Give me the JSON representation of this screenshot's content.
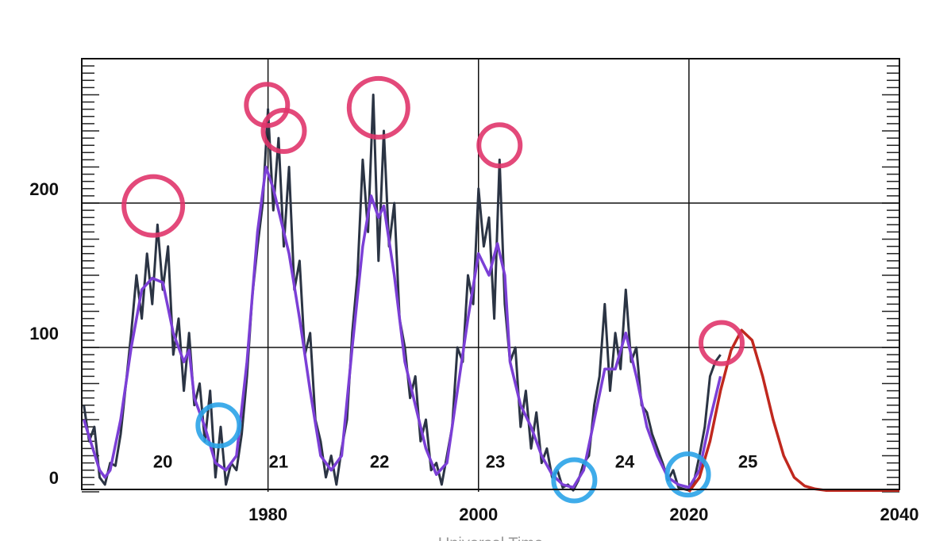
{
  "chart_data": {
    "type": "line",
    "xlabel": "Universal Time",
    "xlim": [
      1962.3,
      2040
    ],
    "ylim": [
      0,
      300
    ],
    "xticks": [
      1980,
      2000,
      2020,
      2040
    ],
    "yticks": [
      0,
      100,
      200
    ],
    "grid": true,
    "minor_ytick_step": 5,
    "series": [
      {
        "color": "#2b3444",
        "x": [
          1962.5,
          1963,
          1963.5,
          1964,
          1964.5,
          1965,
          1965.5,
          1966,
          1966.5,
          1967,
          1967.5,
          1968,
          1968.5,
          1969,
          1969.5,
          1970,
          1970.5,
          1971,
          1971.5,
          1972,
          1972.5,
          1973,
          1973.5,
          1974,
          1974.5,
          1975,
          1975.5,
          1976,
          1976.5,
          1977,
          1977.5,
          1978,
          1978.5,
          1979,
          1979.5,
          1980,
          1980.5,
          1981,
          1981.5,
          1982,
          1982.5,
          1983,
          1983.5,
          1984,
          1984.5,
          1985,
          1985.5,
          1986,
          1986.5,
          1987,
          1987.5,
          1988,
          1988.5,
          1989,
          1989.5,
          1990,
          1990.5,
          1991,
          1991.5,
          1992,
          1992.5,
          1993,
          1993.5,
          1994,
          1994.5,
          1995,
          1995.5,
          1996,
          1996.5,
          1997,
          1997.5,
          1998,
          1998.5,
          1999,
          1999.5,
          2000,
          2000.5,
          2001,
          2001.5,
          2002,
          2002.5,
          2003,
          2003.5,
          2004,
          2004.5,
          2005,
          2005.5,
          2006,
          2006.5,
          2007,
          2007.5,
          2008,
          2008.5,
          2009,
          2009.5,
          2010,
          2010.5,
          2011,
          2011.5,
          2012,
          2012.5,
          2013,
          2013.5,
          2014,
          2014.5,
          2015,
          2015.5,
          2016,
          2016.5,
          2017,
          2017.5,
          2018,
          2018.5,
          2019,
          2019.5,
          2020,
          2020.5,
          2021,
          2021.5,
          2022,
          2022.5,
          2023
        ],
        "values": [
          60,
          35,
          45,
          10,
          5,
          20,
          18,
          40,
          75,
          110,
          150,
          120,
          165,
          130,
          185,
          140,
          170,
          95,
          120,
          70,
          110,
          60,
          75,
          35,
          70,
          10,
          45,
          5,
          20,
          15,
          40,
          80,
          135,
          170,
          200,
          265,
          195,
          245,
          170,
          225,
          140,
          160,
          95,
          110,
          50,
          35,
          10,
          25,
          5,
          30,
          50,
          110,
          150,
          230,
          180,
          275,
          160,
          250,
          170,
          200,
          120,
          100,
          65,
          80,
          35,
          50,
          15,
          20,
          5,
          25,
          45,
          100,
          90,
          150,
          130,
          210,
          170,
          190,
          120,
          230,
          130,
          90,
          100,
          45,
          70,
          30,
          55,
          20,
          30,
          10,
          15,
          3,
          5,
          1,
          8,
          20,
          25,
          60,
          80,
          130,
          70,
          110,
          85,
          140,
          90,
          100,
          60,
          55,
          40,
          30,
          20,
          8,
          15,
          3,
          2,
          1,
          8,
          25,
          45,
          80,
          90,
          95
        ]
      },
      {
        "color": "#7b3fd6",
        "x": [
          1962.5,
          1963,
          1964,
          1964.5,
          1965,
          1966,
          1967,
          1968,
          1969,
          1970,
          1971,
          1972,
          1972.5,
          1973,
          1974,
          1975,
          1976,
          1977,
          1978,
          1979,
          1979.8,
          1980.5,
          1981,
          1982,
          1983,
          1984,
          1985,
          1986,
          1987,
          1988,
          1989,
          1989.8,
          1990.5,
          1991,
          1992,
          1993,
          1994,
          1995,
          1996,
          1997,
          1998,
          1999,
          2000,
          2001,
          2001.8,
          2002.5,
          2003,
          2004,
          2005,
          2006,
          2007,
          2008,
          2009,
          2010,
          2011,
          2012,
          2013,
          2014,
          2015,
          2016,
          2017,
          2018,
          2019,
          2020,
          2021,
          2022,
          2023
        ],
        "values": [
          50,
          38,
          15,
          10,
          15,
          50,
          100,
          140,
          148,
          145,
          110,
          90,
          98,
          65,
          45,
          20,
          15,
          25,
          90,
          180,
          225,
          210,
          195,
          165,
          120,
          70,
          25,
          15,
          25,
          100,
          170,
          205,
          190,
          198,
          150,
          90,
          60,
          30,
          12,
          20,
          70,
          120,
          165,
          150,
          172,
          150,
          90,
          60,
          45,
          25,
          12,
          5,
          3,
          15,
          50,
          85,
          85,
          110,
          80,
          45,
          25,
          10,
          5,
          3,
          15,
          50,
          80
        ]
      },
      {
        "color": "#c0281e",
        "x": [
          2020,
          2021,
          2022,
          2023,
          2024,
          2025,
          2026,
          2027,
          2028,
          2029,
          2030,
          2031,
          2032,
          2033,
          2034,
          2036,
          2038,
          2040
        ],
        "values": [
          0,
          10,
          35,
          70,
          98,
          112,
          105,
          80,
          50,
          25,
          10,
          4,
          2,
          1,
          1,
          1,
          1,
          1
        ]
      }
    ],
    "highlights": [
      {
        "x": 1969.1,
        "y": 198,
        "color": "#e0356c"
      },
      {
        "x": 1979.9,
        "y": 268,
        "color": "#e0356c"
      },
      {
        "x": 1981.5,
        "y": 250,
        "color": "#e0356c"
      },
      {
        "x": 1990.5,
        "y": 266,
        "color": "#e0356c"
      },
      {
        "x": 2002,
        "y": 240,
        "color": "#e0356c"
      },
      {
        "x": 2023.1,
        "y": 103,
        "color": "#e0356c"
      },
      {
        "x": 1975.3,
        "y": 46,
        "color": "#2aa3e8"
      },
      {
        "x": 2009.1,
        "y": 8,
        "color": "#2aa3e8"
      },
      {
        "x": 2019.9,
        "y": 12,
        "color": "#2aa3e8"
      }
    ],
    "cycle_labels": [
      {
        "label": "20",
        "x": 1970.0,
        "y": 20
      },
      {
        "label": "21",
        "x": 1981.0,
        "y": 20
      },
      {
        "label": "22",
        "x": 1990.6,
        "y": 20
      },
      {
        "label": "23",
        "x": 2001.6,
        "y": 20
      },
      {
        "label": "24",
        "x": 2013.9,
        "y": 20
      },
      {
        "label": "25",
        "x": 2025.6,
        "y": 20
      }
    ]
  }
}
